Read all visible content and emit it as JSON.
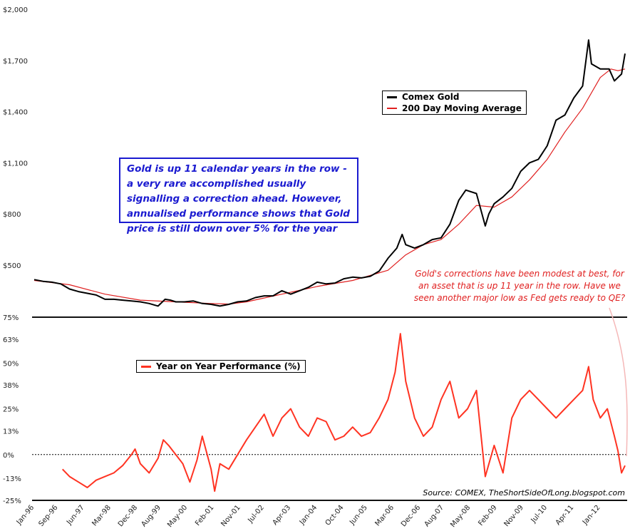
{
  "chart_data": [
    {
      "type": "line",
      "title": "",
      "ylabel": "",
      "ylim": [
        300,
        2000
      ],
      "yticks": [
        "$2,000",
        "$1,700",
        "$1,400",
        "$1,100",
        "$800",
        "$500"
      ],
      "ytick_values": [
        2000,
        1700,
        1400,
        1100,
        800,
        500
      ],
      "legend": [
        "Comex Gold",
        "200 Day Moving Average"
      ],
      "series": [
        {
          "name": "Comex Gold",
          "color": "#000000",
          "x": [
            1996.0,
            1996.25,
            1996.5,
            1996.75,
            1997.0,
            1997.25,
            1997.5,
            1997.75,
            1998.0,
            1998.25,
            1998.5,
            1998.75,
            1999.0,
            1999.25,
            1999.5,
            1999.7,
            1999.85,
            2000.0,
            2000.25,
            2000.5,
            2000.75,
            2001.0,
            2001.25,
            2001.5,
            2001.75,
            2002.0,
            2002.25,
            2002.5,
            2002.75,
            2003.0,
            2003.25,
            2003.5,
            2003.75,
            2004.0,
            2004.25,
            2004.5,
            2004.75,
            2005.0,
            2005.25,
            2005.5,
            2005.75,
            2006.0,
            2006.25,
            2006.4,
            2006.5,
            2006.75,
            2007.0,
            2007.25,
            2007.5,
            2007.75,
            2008.0,
            2008.2,
            2008.5,
            2008.75,
            2008.85,
            2009.0,
            2009.25,
            2009.5,
            2009.75,
            2010.0,
            2010.25,
            2010.5,
            2010.75,
            2011.0,
            2011.25,
            2011.5,
            2011.67,
            2011.75,
            2012.0,
            2012.25,
            2012.4,
            2012.5,
            2012.6,
            2012.7
          ],
          "values": [
            415,
            405,
            400,
            390,
            360,
            345,
            335,
            325,
            300,
            300,
            295,
            290,
            285,
            275,
            260,
            300,
            295,
            285,
            285,
            290,
            275,
            270,
            260,
            270,
            285,
            290,
            310,
            320,
            320,
            350,
            330,
            350,
            370,
            400,
            390,
            395,
            420,
            430,
            425,
            435,
            465,
            540,
            600,
            680,
            620,
            600,
            620,
            650,
            660,
            740,
            880,
            940,
            920,
            730,
            800,
            860,
            900,
            950,
            1050,
            1100,
            1120,
            1200,
            1350,
            1380,
            1480,
            1550,
            1820,
            1680,
            1650,
            1650,
            1580,
            1600,
            1620,
            1740
          ]
        },
        {
          "name": "200 Day Moving Average",
          "color": "#e02020",
          "x": [
            1996.0,
            1997.0,
            1998.0,
            1999.0,
            2000.0,
            2001.0,
            2001.5,
            2002.0,
            2003.0,
            2004.0,
            2005.0,
            2006.0,
            2006.5,
            2007.0,
            2007.5,
            2008.0,
            2008.5,
            2009.0,
            2009.5,
            2010.0,
            2010.5,
            2011.0,
            2011.5,
            2012.0,
            2012.3,
            2012.5,
            2012.7
          ],
          "values": [
            410,
            385,
            330,
            295,
            285,
            275,
            272,
            285,
            330,
            375,
            410,
            470,
            560,
            620,
            650,
            740,
            850,
            840,
            900,
            1000,
            1120,
            1280,
            1420,
            1600,
            1650,
            1640,
            1650
          ]
        }
      ]
    },
    {
      "type": "line",
      "title": "",
      "ylabel": "",
      "ylim": [
        -25,
        75
      ],
      "yticks": [
        "75%",
        "63%",
        "50%",
        "38%",
        "25%",
        "13%",
        "0%",
        "-13%",
        "-25%"
      ],
      "ytick_values": [
        75,
        63,
        50,
        38,
        25,
        13,
        0,
        -13,
        -25
      ],
      "reference_line": 0,
      "legend": [
        "Year on Year Performance (%)"
      ],
      "series": [
        {
          "name": "Year on Year Performance (%)",
          "color": "#ff3322",
          "x": [
            1996.8,
            1997.0,
            1997.25,
            1997.5,
            1997.75,
            1998.0,
            1998.25,
            1998.5,
            1998.75,
            1998.85,
            1999.0,
            1999.25,
            1999.5,
            1999.65,
            1999.8,
            2000.0,
            2000.2,
            2000.4,
            2000.6,
            2000.75,
            2001.0,
            2001.1,
            2001.25,
            2001.5,
            2001.75,
            2002.0,
            2002.25,
            2002.5,
            2002.75,
            2003.0,
            2003.25,
            2003.5,
            2003.75,
            2004.0,
            2004.25,
            2004.5,
            2004.75,
            2005.0,
            2005.25,
            2005.5,
            2005.75,
            2006.0,
            2006.2,
            2006.35,
            2006.5,
            2006.75,
            2007.0,
            2007.25,
            2007.5,
            2007.75,
            2008.0,
            2008.25,
            2008.5,
            2008.75,
            2009.0,
            2009.25,
            2009.5,
            2009.75,
            2010.0,
            2010.25,
            2010.5,
            2010.75,
            2011.0,
            2011.25,
            2011.5,
            2011.67,
            2011.8,
            2012.0,
            2012.2,
            2012.4,
            2012.5,
            2012.6,
            2012.7
          ],
          "values": [
            -8,
            -12,
            -15,
            -18,
            -14,
            -12,
            -10,
            -6,
            0,
            3,
            -5,
            -10,
            -2,
            8,
            5,
            0,
            -5,
            -15,
            -3,
            10,
            -8,
            -20,
            -5,
            -8,
            0,
            8,
            15,
            22,
            10,
            20,
            25,
            15,
            10,
            20,
            18,
            8,
            10,
            15,
            10,
            12,
            20,
            30,
            45,
            66,
            40,
            20,
            10,
            15,
            30,
            40,
            20,
            25,
            35,
            -12,
            5,
            -10,
            20,
            30,
            35,
            30,
            25,
            20,
            25,
            30,
            35,
            48,
            30,
            20,
            25,
            10,
            2,
            -10,
            -6
          ]
        }
      ]
    }
  ],
  "xticks": [
    "Jan-96",
    "Sep-96",
    "Jun-97",
    "Mar-98",
    "Dec-98",
    "Aug-99",
    "May-00",
    "Feb-01",
    "Nov-01",
    "Jul-02",
    "Apr-03",
    "Jan-04",
    "Oct-04",
    "Jun-05",
    "Mar-06",
    "Dec-06",
    "Aug-07",
    "May-08",
    "Feb-09",
    "Nov-09",
    "Jul-10",
    "Apr-11",
    "Jan-12"
  ],
  "xtick_values": [
    1996.0,
    1996.67,
    1997.42,
    1998.17,
    1998.92,
    1999.58,
    2000.33,
    2001.08,
    2001.83,
    2002.5,
    2003.25,
    2004.0,
    2004.75,
    2005.42,
    2006.17,
    2006.92,
    2007.58,
    2008.33,
    2009.08,
    2009.83,
    2010.5,
    2011.25,
    2012.0
  ],
  "annotations": {
    "blue_note": "Gold is up 11 calendar years in the row - a very rare accomplished usually signalling a correction ahead. However, annualised performance shows that Gold price is still down over 5% for the year",
    "red_note": "Gold's corrections have been modest at best, for an asset that is up 11 year in the row. Have we seen another major low as Fed gets ready to QE?",
    "source": "Source: COMEX, TheShortSideOfLong.blogspot.com"
  },
  "colors": {
    "gold": "#000000",
    "ma": "#e02020",
    "yoy": "#ff3322",
    "note_blue": "#1a1ad0",
    "note_red": "#e02020"
  }
}
